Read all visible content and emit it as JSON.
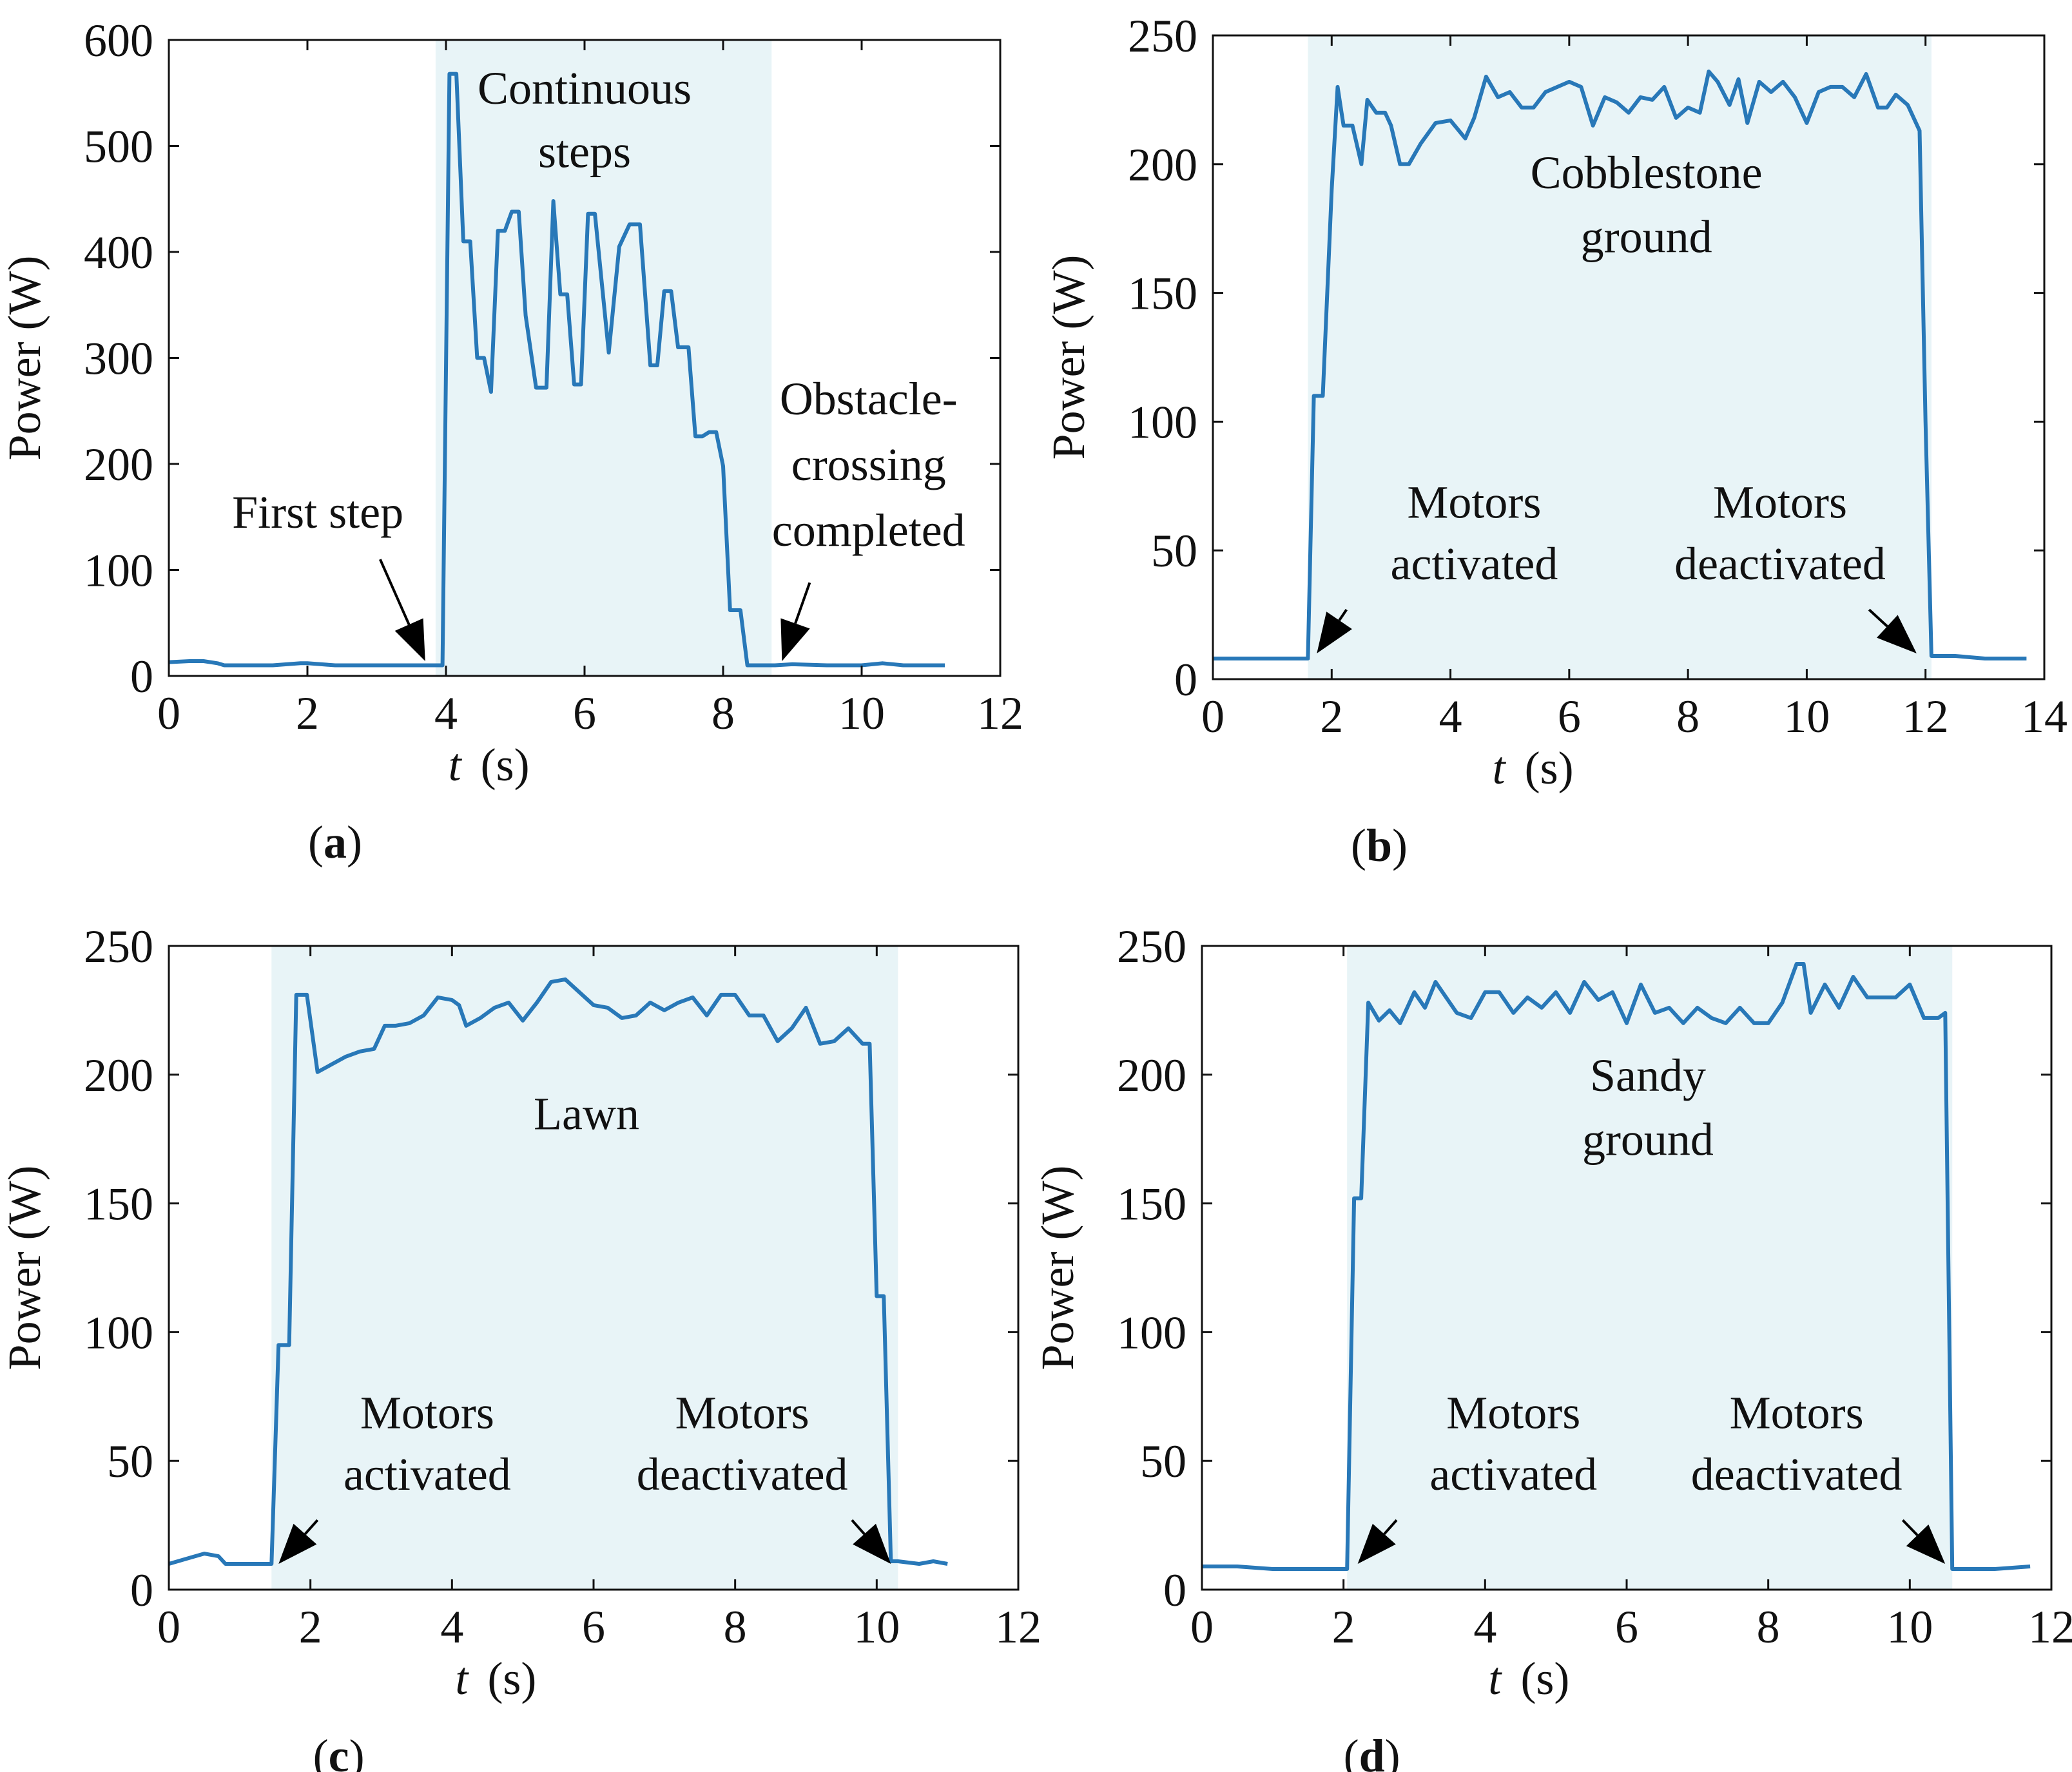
{
  "colors": {
    "line": "#2878b8",
    "shade": "#e8f4f7",
    "axis": "#111111",
    "arrow": "#000000"
  },
  "chart_data": [
    {
      "type": "line",
      "panel_label": "a",
      "xlabel_italic": "t",
      "xlabel_unit": "(s)",
      "ylabel": "Power (W)",
      "xlim": [
        0,
        12
      ],
      "ylim": [
        0,
        600
      ],
      "xticks": [
        0,
        2,
        4,
        6,
        8,
        10,
        12
      ],
      "yticks": [
        0,
        100,
        200,
        300,
        400,
        500,
        600
      ],
      "shade_range": [
        3.85,
        8.7
      ],
      "x": [
        0,
        0.3,
        0.5,
        0.7,
        0.8,
        1.0,
        1.5,
        1.9,
        2.0,
        2.2,
        2.4,
        2.8,
        3.0,
        3.5,
        3.85,
        3.95,
        4.05,
        4.15,
        4.25,
        4.35,
        4.45,
        4.55,
        4.65,
        4.75,
        4.85,
        4.95,
        5.05,
        5.15,
        5.3,
        5.45,
        5.55,
        5.65,
        5.75,
        5.85,
        5.95,
        6.05,
        6.15,
        6.25,
        6.35,
        6.5,
        6.65,
        6.8,
        6.95,
        7.05,
        7.15,
        7.25,
        7.35,
        7.5,
        7.6,
        7.7,
        7.8,
        7.9,
        8.0,
        8.1,
        8.25,
        8.35,
        8.45,
        8.55,
        8.65,
        8.75,
        9.0,
        9.5,
        10.0,
        10.3,
        10.6,
        11.0,
        11.2
      ],
      "values": [
        13,
        14,
        14,
        12,
        10,
        10,
        10,
        12,
        12,
        11,
        10,
        10,
        10,
        10,
        10,
        10,
        568,
        568,
        410,
        410,
        300,
        300,
        268,
        420,
        420,
        438,
        438,
        340,
        272,
        272,
        448,
        360,
        360,
        275,
        275,
        436,
        436,
        370,
        305,
        405,
        426,
        426,
        293,
        293,
        363,
        363,
        310,
        310,
        226,
        226,
        230,
        230,
        198,
        62,
        62,
        10,
        10,
        10,
        10,
        10,
        11,
        10,
        10,
        12,
        10,
        10,
        10
      ],
      "annotations": [
        {
          "text": "Continuous",
          "x": 6.0,
          "y": 555
        },
        {
          "text": "steps",
          "x": 6.0,
          "y": 495
        },
        {
          "text": "First step",
          "x": 2.15,
          "y": 155
        },
        {
          "text": "Obstacle-",
          "x": 10.1,
          "y": 262
        },
        {
          "text": "crossing",
          "x": 10.1,
          "y": 200
        },
        {
          "text": "completed",
          "x": 10.1,
          "y": 138
        }
      ],
      "arrows": [
        {
          "from": [
            3.05,
            110
          ],
          "to": [
            3.7,
            14
          ]
        },
        {
          "from": [
            9.25,
            88
          ],
          "to": [
            8.85,
            14
          ]
        }
      ]
    },
    {
      "type": "line",
      "panel_label": "b",
      "xlabel_italic": "t",
      "xlabel_unit": "(s)",
      "ylabel": "Power (W)",
      "xlim": [
        0,
        14
      ],
      "ylim": [
        0,
        250
      ],
      "xticks": [
        0,
        2,
        4,
        6,
        8,
        10,
        12,
        14
      ],
      "yticks": [
        0,
        50,
        100,
        150,
        200,
        250
      ],
      "shade_range": [
        1.6,
        12.1
      ],
      "x": [
        0,
        0.5,
        1.0,
        1.6,
        1.7,
        1.85,
        2.0,
        2.1,
        2.2,
        2.35,
        2.5,
        2.6,
        2.75,
        2.9,
        3.0,
        3.15,
        3.3,
        3.5,
        3.75,
        4.0,
        4.25,
        4.4,
        4.6,
        4.8,
        5.0,
        5.2,
        5.4,
        5.6,
        5.8,
        6.0,
        6.2,
        6.4,
        6.6,
        6.8,
        7.0,
        7.2,
        7.4,
        7.6,
        7.8,
        8.0,
        8.2,
        8.35,
        8.5,
        8.7,
        8.85,
        9.0,
        9.2,
        9.4,
        9.6,
        9.8,
        10.0,
        10.2,
        10.4,
        10.6,
        10.8,
        11.0,
        11.2,
        11.35,
        11.5,
        11.7,
        11.9,
        12.0,
        12.1,
        12.5,
        13.0,
        13.4,
        13.7
      ],
      "values": [
        8,
        8,
        8,
        8,
        110,
        110,
        190,
        230,
        215,
        215,
        200,
        225,
        220,
        220,
        215,
        200,
        200,
        208,
        216,
        217,
        210,
        218,
        234,
        226,
        228,
        222,
        222,
        228,
        230,
        232,
        230,
        215,
        226,
        224,
        220,
        226,
        225,
        230,
        218,
        222,
        220,
        236,
        232,
        223,
        233,
        216,
        232,
        228,
        232,
        226,
        216,
        228,
        230,
        230,
        226,
        235,
        222,
        222,
        227,
        223,
        213,
        100,
        9,
        9,
        8,
        8,
        8
      ],
      "annotations": [
        {
          "text": "Cobblestone",
          "x": 7.3,
          "y": 197
        },
        {
          "text": "ground",
          "x": 7.3,
          "y": 172
        },
        {
          "text": "Motors",
          "x": 4.4,
          "y": 69
        },
        {
          "text": "activated",
          "x": 4.4,
          "y": 45
        },
        {
          "text": "Motors",
          "x": 9.55,
          "y": 69
        },
        {
          "text": "deactivated",
          "x": 9.55,
          "y": 45
        }
      ],
      "arrows": [
        {
          "from": [
            2.25,
            27
          ],
          "to": [
            1.75,
            10
          ]
        },
        {
          "from": [
            11.05,
            27
          ],
          "to": [
            11.85,
            10
          ]
        }
      ]
    },
    {
      "type": "line",
      "panel_label": "c",
      "xlabel_italic": "t",
      "xlabel_unit": "(s)",
      "ylabel": "Power (W)",
      "xlim": [
        0,
        12
      ],
      "ylim": [
        0,
        250
      ],
      "xticks": [
        0,
        2,
        4,
        6,
        8,
        10,
        12
      ],
      "yticks": [
        0,
        50,
        100,
        150,
        200,
        250
      ],
      "shade_range": [
        1.45,
        10.3
      ],
      "x": [
        0,
        0.25,
        0.5,
        0.7,
        0.8,
        1.0,
        1.2,
        1.45,
        1.55,
        1.7,
        1.8,
        1.95,
        2.1,
        2.3,
        2.5,
        2.7,
        2.9,
        3.05,
        3.2,
        3.4,
        3.6,
        3.8,
        4.0,
        4.1,
        4.2,
        4.4,
        4.6,
        4.8,
        5.0,
        5.2,
        5.4,
        5.6,
        5.8,
        6.0,
        6.2,
        6.4,
        6.6,
        6.8,
        7.0,
        7.2,
        7.4,
        7.6,
        7.8,
        8.0,
        8.2,
        8.4,
        8.6,
        8.8,
        9.0,
        9.2,
        9.4,
        9.6,
        9.8,
        9.9,
        10.0,
        10.1,
        10.2,
        10.3,
        10.6,
        10.8,
        11.0
      ],
      "values": [
        10,
        12,
        14,
        13,
        10,
        10,
        10,
        10,
        95,
        95,
        231,
        231,
        201,
        204,
        207,
        209,
        210,
        219,
        219,
        220,
        223,
        230,
        229,
        227,
        219,
        222,
        226,
        228,
        221,
        228,
        236,
        237,
        232,
        227,
        226,
        222,
        223,
        228,
        225,
        228,
        230,
        223,
        231,
        231,
        223,
        223,
        213,
        218,
        226,
        212,
        213,
        218,
        212,
        212,
        114,
        114,
        11,
        11,
        10,
        11,
        10
      ],
      "annotations": [
        {
          "text": "Lawn",
          "x": 5.9,
          "y": 185
        },
        {
          "text": "Motors",
          "x": 3.65,
          "y": 69
        },
        {
          "text": "activated",
          "x": 3.65,
          "y": 45
        },
        {
          "text": "Motors",
          "x": 8.1,
          "y": 69
        },
        {
          "text": "deactivated",
          "x": 8.1,
          "y": 45
        }
      ],
      "arrows": [
        {
          "from": [
            2.1,
            27
          ],
          "to": [
            1.55,
            10
          ]
        },
        {
          "from": [
            9.65,
            27
          ],
          "to": [
            10.2,
            10
          ]
        }
      ]
    },
    {
      "type": "line",
      "panel_label": "d",
      "xlabel_italic": "t",
      "xlabel_unit": "(s)",
      "ylabel": "Power (W)",
      "xlim": [
        0,
        12
      ],
      "ylim": [
        0,
        250
      ],
      "xticks": [
        0,
        2,
        4,
        6,
        8,
        10,
        12
      ],
      "yticks": [
        0,
        50,
        100,
        150,
        200,
        250
      ],
      "shade_range": [
        2.05,
        10.6
      ],
      "x": [
        0,
        0.5,
        1.0,
        1.5,
        1.95,
        2.05,
        2.15,
        2.25,
        2.35,
        2.5,
        2.65,
        2.8,
        3.0,
        3.15,
        3.3,
        3.45,
        3.6,
        3.8,
        4.0,
        4.2,
        4.4,
        4.6,
        4.8,
        5.0,
        5.2,
        5.4,
        5.6,
        5.8,
        6.0,
        6.2,
        6.4,
        6.6,
        6.8,
        7.0,
        7.2,
        7.4,
        7.6,
        7.8,
        8.0,
        8.2,
        8.4,
        8.5,
        8.6,
        8.8,
        9.0,
        9.2,
        9.4,
        9.6,
        9.8,
        10.0,
        10.2,
        10.4,
        10.5,
        10.6,
        10.8,
        11.2,
        11.7
      ],
      "values": [
        9,
        9,
        8,
        8,
        8,
        8,
        152,
        152,
        228,
        221,
        225,
        220,
        232,
        226,
        236,
        230,
        224,
        222,
        232,
        232,
        224,
        230,
        226,
        232,
        224,
        236,
        229,
        232,
        220,
        235,
        224,
        226,
        220,
        226,
        222,
        220,
        226,
        220,
        220,
        228,
        243,
        243,
        224,
        235,
        226,
        238,
        230,
        230,
        230,
        235,
        222,
        222,
        224,
        8,
        8,
        8,
        9
      ],
      "annotations": [
        {
          "text": "Sandy",
          "x": 6.3,
          "y": 200
        },
        {
          "text": "ground",
          "x": 6.3,
          "y": 175
        },
        {
          "text": "Motors",
          "x": 4.4,
          "y": 69
        },
        {
          "text": "activated",
          "x": 4.4,
          "y": 45
        },
        {
          "text": "Motors",
          "x": 8.4,
          "y": 69
        },
        {
          "text": "deactivated",
          "x": 8.4,
          "y": 45
        }
      ],
      "arrows": [
        {
          "from": [
            2.75,
            27
          ],
          "to": [
            2.2,
            10
          ]
        },
        {
          "from": [
            9.9,
            27
          ],
          "to": [
            10.5,
            10
          ]
        }
      ]
    }
  ]
}
